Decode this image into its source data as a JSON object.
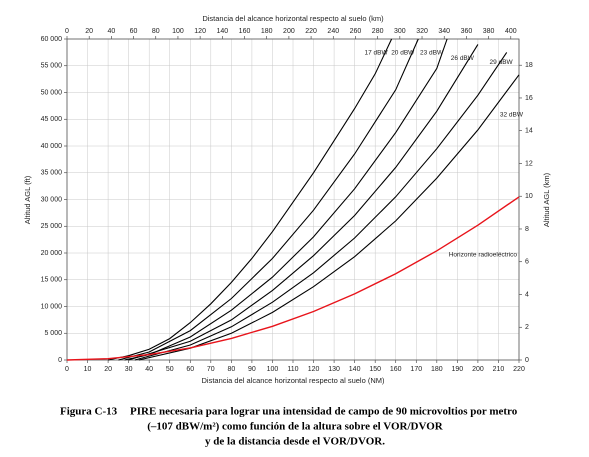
{
  "chart_data": {
    "type": "line",
    "xlabel": "Distancia del alcance horizontal respecto al suelo (NM)",
    "x2label": "Distancia del alcance horizontal respecto al suelo (km)",
    "ylabel": "Altitud AGL (ft)",
    "y2label": "Altitud AGL (km)",
    "caption": {
      "number": "Figura C-13",
      "line1": "PIRE necesaria para lograr una intensidad de campo de 90 microvoltios por metro",
      "line2": "(–107 dBW/m²) como función de la altura sobre el VOR/DVOR",
      "line3": "y de la distancia desde el VOR/DVOR."
    },
    "xlim": [
      0,
      220
    ],
    "xticks": [
      0,
      10,
      20,
      30,
      40,
      50,
      60,
      70,
      80,
      90,
      100,
      110,
      120,
      130,
      140,
      150,
      160,
      170,
      180,
      190,
      200,
      210,
      220
    ],
    "x2lim": [
      0,
      407.4
    ],
    "x2ticks": [
      0,
      20,
      40,
      60,
      80,
      100,
      120,
      140,
      160,
      180,
      200,
      220,
      240,
      260,
      280,
      300,
      320,
      340,
      360,
      380,
      400
    ],
    "ylim": [
      0,
      60000
    ],
    "yticks": [
      0,
      {
        "value": 5000,
        "label": "5 000"
      },
      {
        "value": 10000,
        "label": "10 000"
      },
      {
        "value": 15000,
        "label": "15 000"
      },
      {
        "value": 20000,
        "label": "20 000"
      },
      {
        "value": 25000,
        "label": "25 000"
      },
      {
        "value": 30000,
        "label": "30 000"
      },
      {
        "value": 35000,
        "label": "35 000"
      },
      {
        "value": 40000,
        "label": "40 000"
      },
      {
        "value": 45000,
        "label": "45 000"
      },
      {
        "value": 50000,
        "label": "50 000"
      },
      {
        "value": 55000,
        "label": "55 000"
      },
      {
        "value": 60000,
        "label": "60 000"
      }
    ],
    "y2lim": [
      0,
      19.6
    ],
    "y2ticks": [
      0,
      2,
      4,
      6,
      8,
      10,
      12,
      14,
      16,
      18
    ],
    "grid": true,
    "series": [
      {
        "name": "17 dBW",
        "color": "#000000",
        "x": [
          20,
          30,
          40,
          50,
          60,
          70,
          80,
          90,
          100,
          110,
          120,
          130,
          140,
          150,
          158
        ],
        "values": [
          0,
          800,
          2000,
          4000,
          7000,
          10500,
          14500,
          19000,
          24000,
          29500,
          35000,
          41000,
          47000,
          53500,
          60000
        ]
      },
      {
        "name": "20 dBW",
        "color": "#000000",
        "x": [
          25,
          40,
          60,
          80,
          100,
          120,
          140,
          160,
          171
        ],
        "values": [
          0,
          1500,
          5500,
          11500,
          19000,
          28000,
          38500,
          50500,
          60000
        ]
      },
      {
        "name": "23 dBW",
        "color": "#000000",
        "x": [
          28,
          40,
          60,
          80,
          100,
          120,
          140,
          160,
          180,
          185
        ],
        "values": [
          0,
          1000,
          4300,
          9300,
          15500,
          23000,
          32000,
          42500,
          54500,
          60000
        ]
      },
      {
        "name": "26 dBW",
        "color": "#000000",
        "x": [
          30,
          60,
          80,
          100,
          120,
          140,
          160,
          180,
          200
        ],
        "values": [
          0,
          3500,
          7500,
          13000,
          19500,
          27000,
          36000,
          46500,
          59000
        ]
      },
      {
        "name": "29 dBW",
        "color": "#000000",
        "x": [
          33,
          60,
          80,
          100,
          120,
          140,
          160,
          180,
          200,
          214
        ],
        "values": [
          0,
          2800,
          6200,
          10800,
          16300,
          22800,
          30500,
          39500,
          49500,
          57500
        ]
      },
      {
        "name": "32 dBW",
        "color": "#000000",
        "x": [
          35,
          60,
          80,
          100,
          120,
          140,
          160,
          180,
          200,
          220
        ],
        "values": [
          0,
          2200,
          5000,
          8900,
          13700,
          19300,
          26000,
          34000,
          43000,
          53300
        ]
      },
      {
        "name": "Horizonte radioeléctrico",
        "color": "#e8141b",
        "x": [
          0,
          20,
          40,
          60,
          80,
          100,
          120,
          140,
          160,
          180,
          200,
          220
        ],
        "values": [
          0,
          252,
          1008,
          2268,
          4032,
          6299,
          9071,
          12347,
          16126,
          20410,
          25198,
          30486
        ]
      }
    ]
  }
}
